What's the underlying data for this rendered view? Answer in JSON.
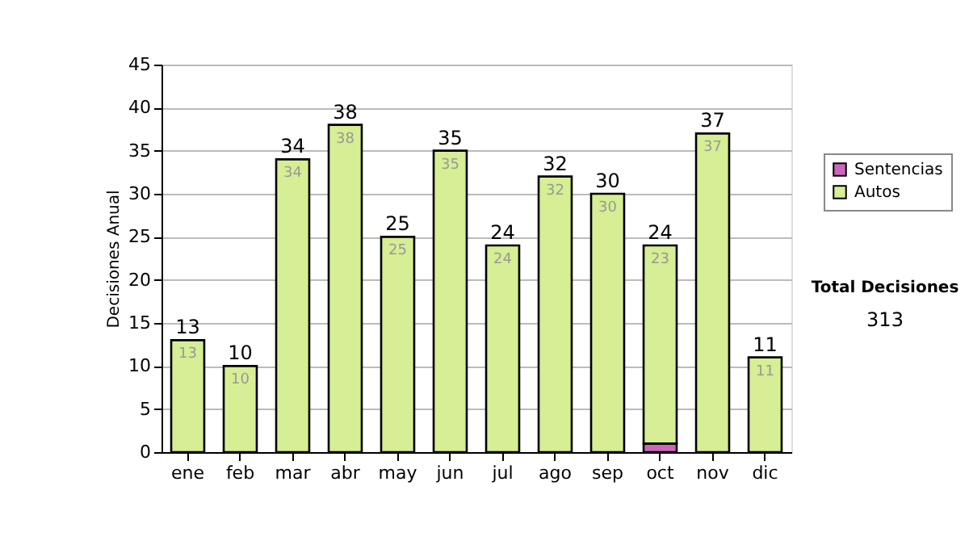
{
  "chart_data": {
    "type": "bar",
    "stacked": true,
    "ylabel": "Decisiones Anual",
    "categories": [
      "ene",
      "feb",
      "mar",
      "abr",
      "may",
      "jun",
      "jul",
      "ago",
      "sep",
      "oct",
      "nov",
      "dic"
    ],
    "series": [
      {
        "name": "Sentencias",
        "color": "#cc66bb",
        "values": [
          null,
          null,
          null,
          null,
          null,
          null,
          null,
          null,
          null,
          1,
          null,
          null
        ]
      },
      {
        "name": "Autos",
        "color": "#d6ee94",
        "values": [
          13,
          10,
          34,
          38,
          25,
          35,
          24,
          32,
          30,
          23,
          37,
          11
        ],
        "value_labels": [
          "13",
          "10",
          "34",
          "38",
          "25",
          "35",
          "24",
          "32",
          "30",
          "23",
          "37",
          "11"
        ]
      }
    ],
    "totals": [
      "13",
      "10",
      "34",
      "38",
      "25",
      "35",
      "24",
      "32",
      "30",
      "24",
      "37",
      "11"
    ],
    "ylim": [
      0,
      45
    ],
    "yticks": [
      0,
      5,
      10,
      15,
      20,
      25,
      30,
      35,
      40,
      45
    ],
    "grid": "y",
    "legend": "right",
    "annotations": [
      "Total Decisiones",
      "313"
    ]
  }
}
